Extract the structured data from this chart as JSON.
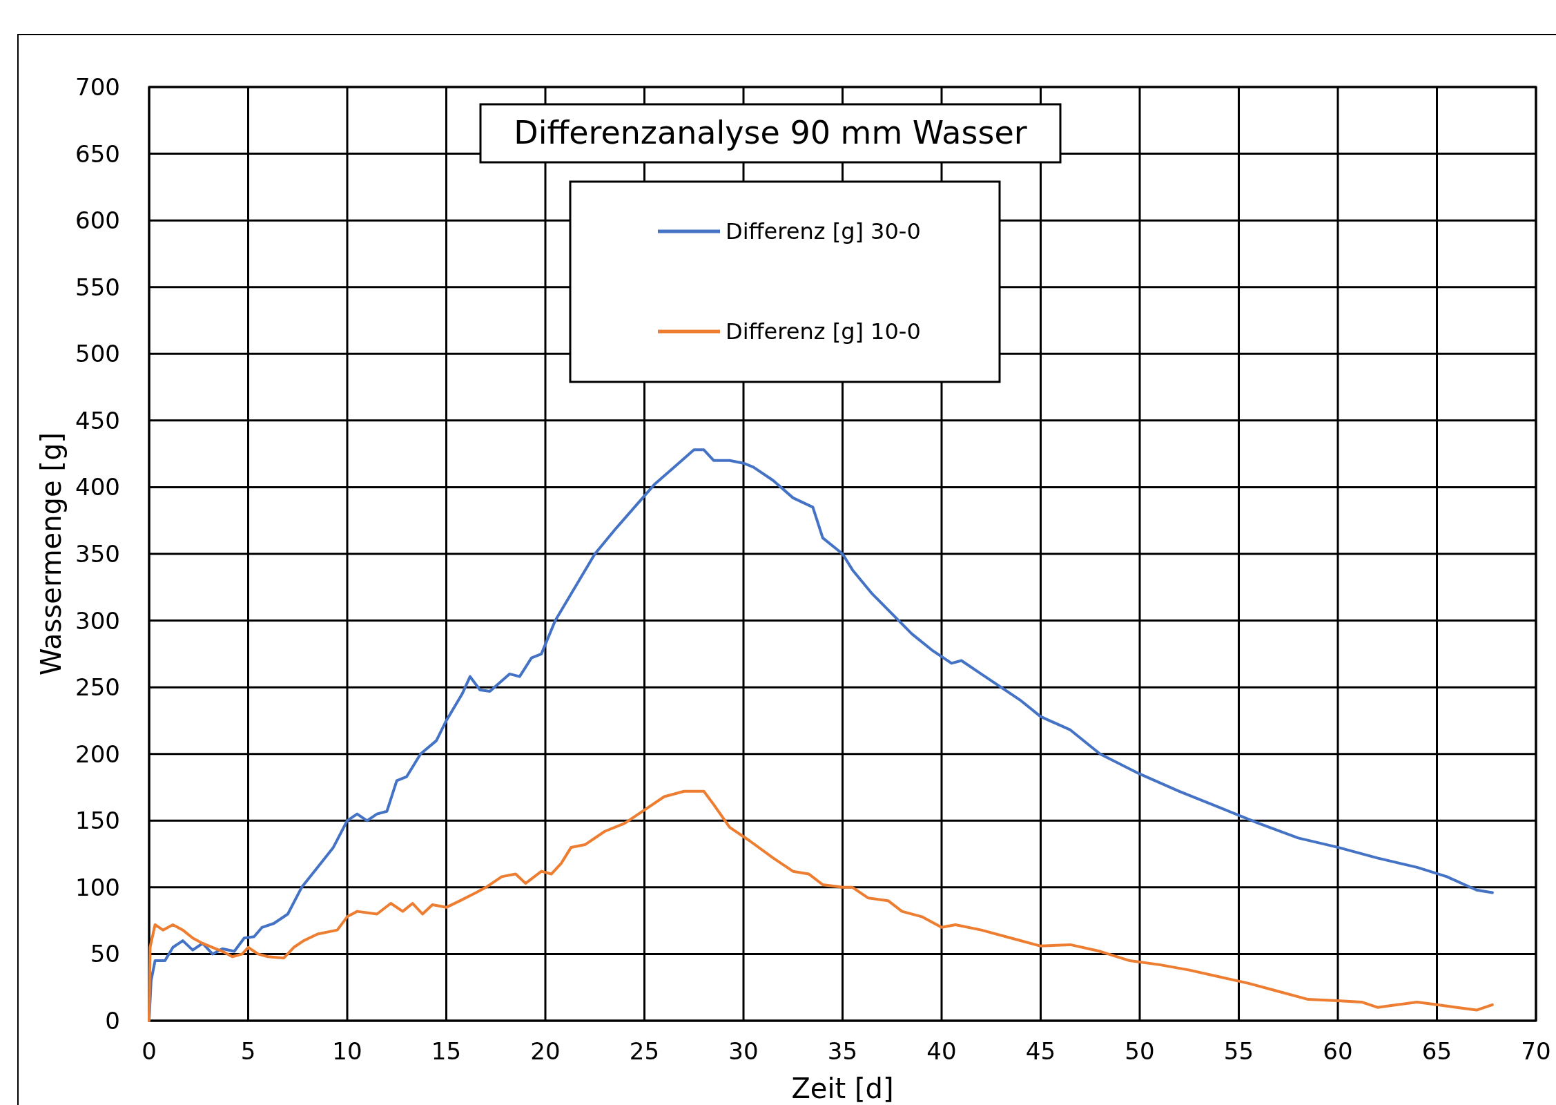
{
  "chart_data": {
    "type": "line",
    "title": "Differenzanalyse 90 mm Wasser",
    "xlabel": "Zeit [d]",
    "ylabel": "Wassermenge [g]",
    "xlim": [
      0,
      70
    ],
    "xticks": [
      0,
      5,
      10,
      15,
      20,
      25,
      30,
      35,
      40,
      45,
      50,
      55,
      60,
      65,
      70
    ],
    "ylim": [
      0,
      700
    ],
    "yticks": [
      0,
      50,
      100,
      150,
      200,
      250,
      300,
      350,
      400,
      450,
      500,
      550,
      600,
      650,
      700
    ],
    "grid": true,
    "legend": "top",
    "marker": "none",
    "line_style": "solid",
    "series": [
      {
        "name": "Differenz [g] 30-0",
        "color": "#4472c4",
        "x": [
          0,
          0.1,
          0.3,
          0.8,
          1.2,
          1.7,
          2.2,
          2.7,
          3.2,
          3.7,
          4.3,
          4.8,
          5.3,
          5.7,
          6.3,
          7,
          7.7,
          8.5,
          9.3,
          10,
          10.5,
          11,
          11.5,
          12,
          12.5,
          13,
          13.7,
          14.5,
          15,
          15.8,
          16.2,
          16.7,
          17.2,
          18.2,
          18.7,
          19.3,
          19.8,
          20.5,
          21.5,
          22.5,
          23.5,
          24.5,
          25.5,
          26.5,
          27.5,
          28,
          28.5,
          29.3,
          30,
          30.5,
          31.5,
          32.5,
          33.5,
          34,
          35,
          35.5,
          36.5,
          37.5,
          38.5,
          39.5,
          40.5,
          41,
          42,
          43,
          44,
          45,
          46.5,
          48,
          50,
          52,
          54,
          56,
          58,
          60,
          62,
          64,
          65.5,
          67,
          67.8
        ],
        "values": [
          0,
          30,
          45,
          45,
          55,
          60,
          53,
          58,
          50,
          54,
          52,
          62,
          63,
          70,
          73,
          80,
          100,
          115,
          130,
          150,
          155,
          150,
          155,
          157,
          180,
          183,
          200,
          210,
          225,
          245,
          258,
          248,
          247,
          260,
          258,
          272,
          275,
          300,
          325,
          350,
          368,
          385,
          402,
          415,
          428,
          428,
          420,
          420,
          418,
          415,
          405,
          392,
          385,
          362,
          350,
          338,
          320,
          305,
          290,
          278,
          268,
          270,
          260,
          250,
          240,
          228,
          218,
          200,
          185,
          172,
          160,
          148,
          137,
          130,
          122,
          115,
          108,
          98,
          96
        ]
      },
      {
        "name": "Differenz [g] 10-0",
        "color": "#ed7d31",
        "x": [
          0,
          0.05,
          0.3,
          0.7,
          1.2,
          1.7,
          2.2,
          2.7,
          3.2,
          3.7,
          4.2,
          4.7,
          5,
          5.5,
          6,
          6.8,
          7.3,
          7.8,
          8.5,
          9.5,
          10,
          10.5,
          11.5,
          12.2,
          12.8,
          13.3,
          13.8,
          14.3,
          15,
          15.7,
          16.5,
          17,
          17.8,
          18.5,
          19,
          19.8,
          20.3,
          20.8,
          21.3,
          22,
          23,
          24,
          25,
          26,
          27,
          28,
          28.5,
          29.3,
          30.3,
          31.5,
          32.5,
          33.3,
          34,
          35,
          35.5,
          36.3,
          37.3,
          38,
          39,
          40,
          40.7,
          42,
          43.5,
          45,
          46.5,
          48,
          49.5,
          51,
          52.5,
          54,
          55.5,
          57,
          58.5,
          60,
          61.2,
          62,
          63,
          64,
          65,
          66,
          67,
          67.8
        ],
        "values": [
          0,
          55,
          72,
          68,
          72,
          68,
          62,
          58,
          55,
          52,
          48,
          50,
          55,
          50,
          48,
          47,
          55,
          60,
          65,
          68,
          78,
          82,
          80,
          88,
          82,
          88,
          80,
          87,
          85,
          90,
          96,
          100,
          108,
          110,
          103,
          112,
          110,
          118,
          130,
          132,
          142,
          148,
          158,
          168,
          172,
          172,
          162,
          145,
          135,
          122,
          112,
          110,
          102,
          100,
          100,
          92,
          90,
          82,
          78,
          70,
          72,
          68,
          62,
          56,
          57,
          52,
          45,
          42,
          38,
          33,
          28,
          22,
          16,
          15,
          14,
          10,
          12,
          14,
          12,
          10,
          8,
          12
        ]
      }
    ]
  }
}
